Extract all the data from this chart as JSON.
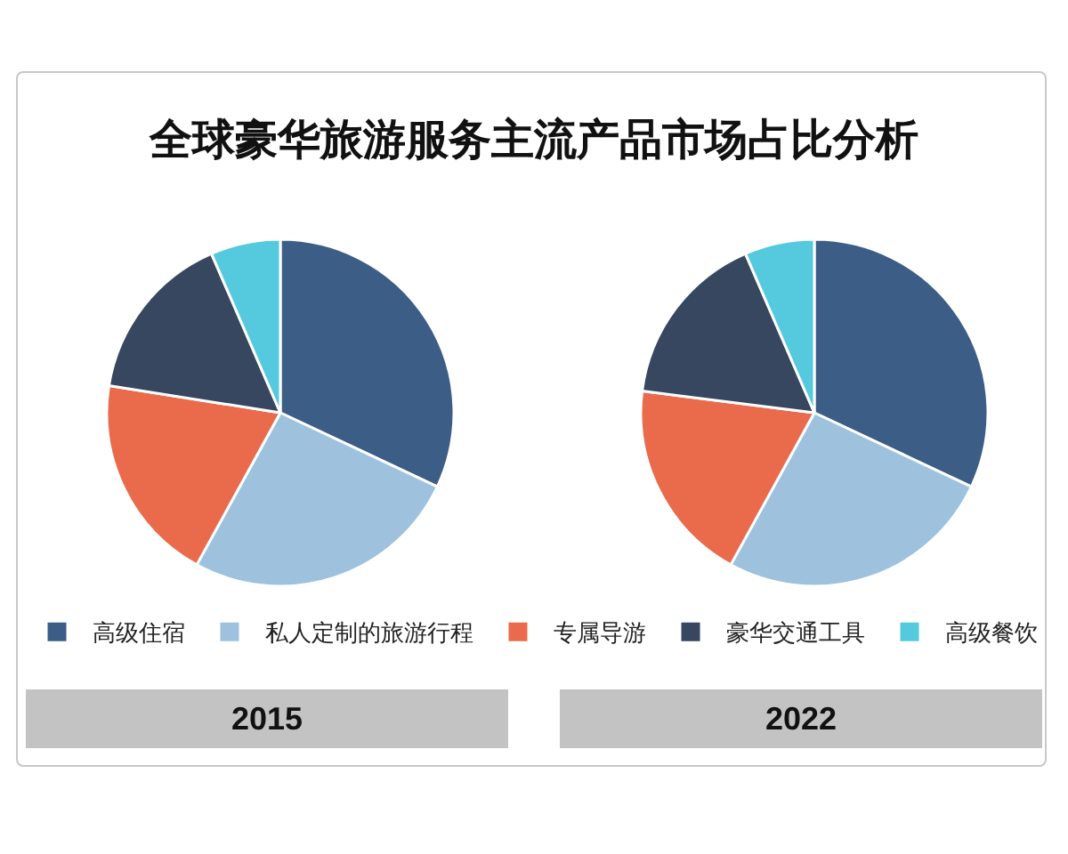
{
  "chart_data": {
    "type": "pie",
    "title": "全球豪华旅游服务主流产品市场占比分析",
    "categories": [
      "高级住宿",
      "私人定制的旅游行程",
      "专属导游",
      "豪华交通工具",
      "高级餐饮"
    ],
    "colors": [
      "#3c5d85",
      "#9ec2de",
      "#ea6a4c",
      "#36475f",
      "#55c9dd"
    ],
    "legend": "bottom",
    "series": [
      {
        "name": "2015",
        "values": [
          32,
          26,
          19.5,
          16,
          6.5
        ]
      },
      {
        "name": "2022",
        "values": [
          32,
          26,
          19,
          16.5,
          6.5
        ]
      }
    ]
  }
}
